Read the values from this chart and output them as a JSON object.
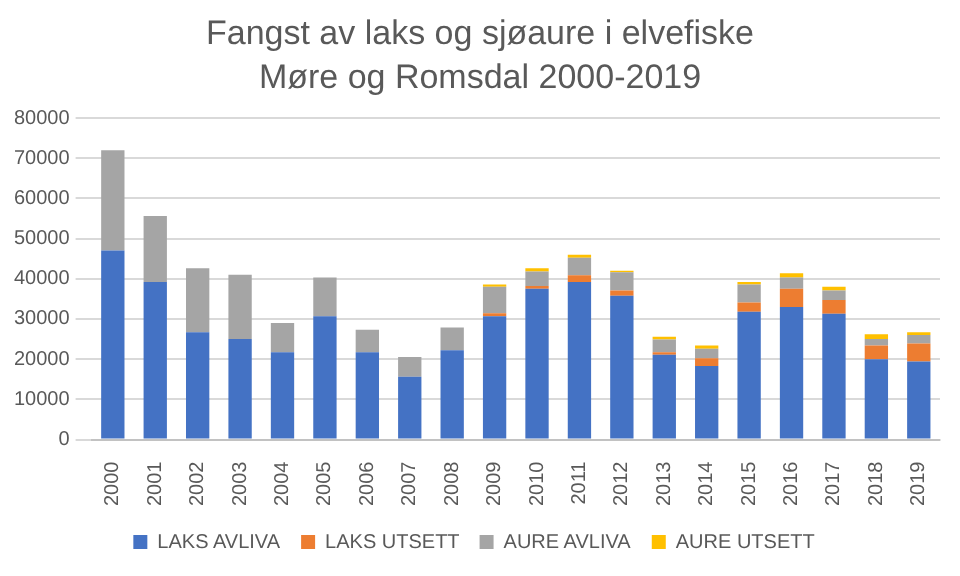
{
  "chart_data": {
    "type": "bar",
    "title": "Fangst av laks og sjøaure i elvefiske Møre og Romsdal 2000-2019",
    "categories": [
      "2000",
      "2001",
      "2002",
      "2003",
      "2004",
      "2005",
      "2006",
      "2007",
      "2008",
      "2009",
      "2010",
      "2011",
      "2012",
      "2013",
      "2014",
      "2015",
      "2016",
      "2017",
      "2018",
      "2019"
    ],
    "stacked": true,
    "series": [
      {
        "name": "LAKS AVLIVA",
        "color": "#4472c4",
        "values": [
          47000,
          39200,
          26700,
          25000,
          21700,
          30700,
          21700,
          15600,
          22200,
          30700,
          37500,
          39200,
          35800,
          21100,
          18300,
          31800,
          33000,
          31300,
          20000,
          19400
        ]
      },
      {
        "name": "LAKS UTSETT",
        "color": "#ed7d31",
        "values": [
          0,
          0,
          0,
          0,
          0,
          0,
          0,
          0,
          0,
          700,
          700,
          1700,
          1300,
          600,
          1900,
          2300,
          4500,
          3400,
          3400,
          4500
        ]
      },
      {
        "name": "AURE AVLIVA",
        "color": "#a5a5a5",
        "values": [
          25000,
          16400,
          15900,
          16000,
          7300,
          9600,
          5600,
          4900,
          5700,
          6600,
          3600,
          4300,
          4500,
          3200,
          2400,
          4500,
          2800,
          2400,
          1600,
          2100
        ]
      },
      {
        "name": "AURE UTSETT",
        "color": "#ffc000",
        "values": [
          0,
          0,
          0,
          0,
          0,
          0,
          0,
          0,
          0,
          600,
          800,
          800,
          400,
          700,
          800,
          600,
          1100,
          900,
          1200,
          700
        ]
      }
    ],
    "ylim": [
      0,
      80000
    ],
    "yticks": [
      0,
      10000,
      20000,
      30000,
      40000,
      50000,
      60000,
      70000,
      80000
    ],
    "grid": "y",
    "legend": "bottom"
  }
}
